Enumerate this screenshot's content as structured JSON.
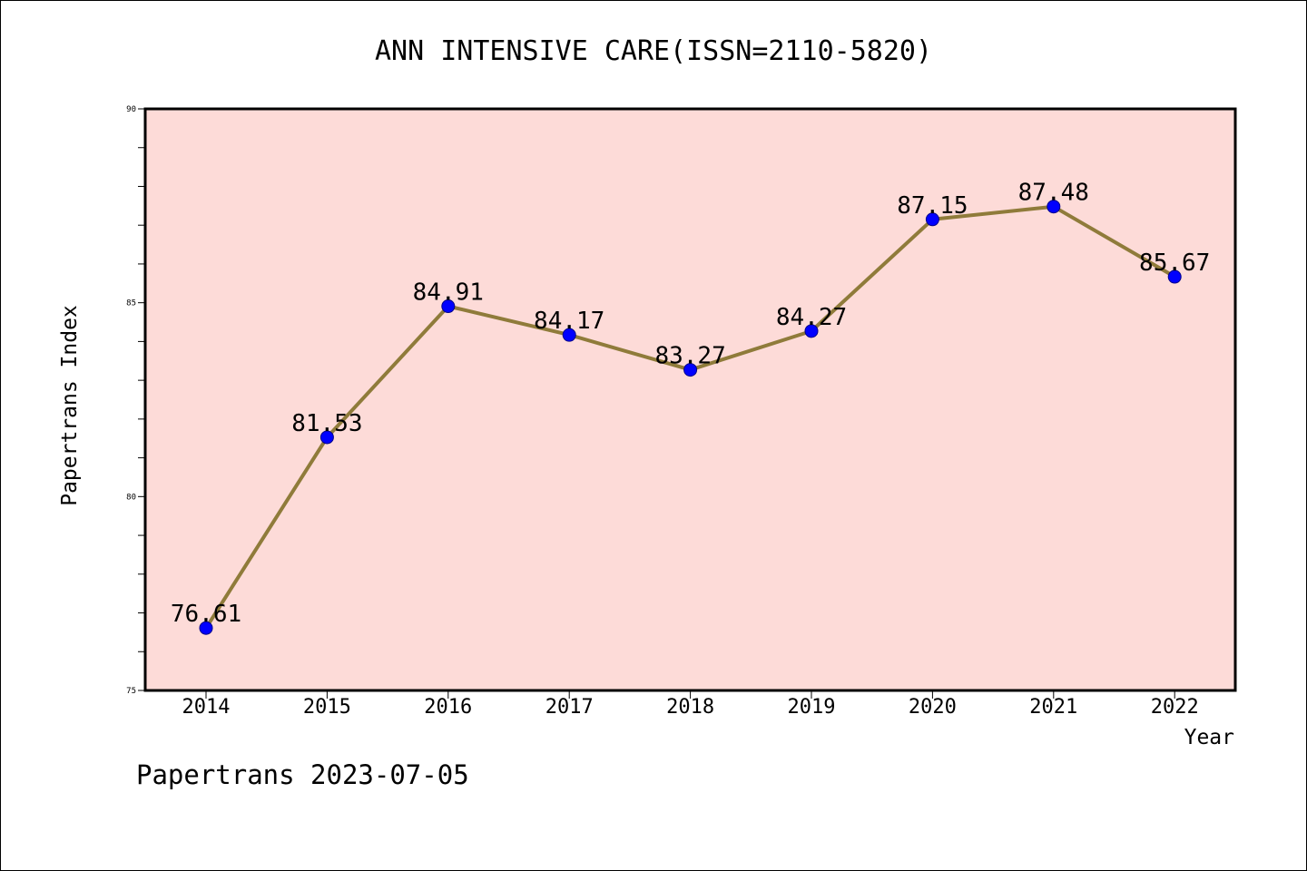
{
  "chart_data": {
    "type": "line",
    "title": "ANN INTENSIVE CARE(ISSN=2110-5820)",
    "xlabel": "Year",
    "ylabel": "Papertrans Index",
    "categories": [
      "2014",
      "2015",
      "2016",
      "2017",
      "2018",
      "2019",
      "2020",
      "2021",
      "2022"
    ],
    "series": [
      {
        "values": [
          76.61,
          81.53,
          84.91,
          84.17,
          83.27,
          84.27,
          87.15,
          87.48,
          85.67
        ],
        "labels": [
          "76.61",
          "81.53",
          "84.91",
          "84.17",
          "83.27",
          "84.27",
          "87.15",
          "87.48",
          "85.67"
        ]
      }
    ],
    "ylim": [
      75,
      90
    ],
    "yticks": [
      "75",
      "80",
      "85",
      "90"
    ],
    "ytick_values": [
      75,
      80,
      85,
      90
    ],
    "y_minor_step": 1,
    "grid": false,
    "colors": {
      "plot_background": "#fddbd8",
      "line": "#8f7b3a",
      "marker": "#0000ff"
    }
  },
  "footer": {
    "text": "Papertrans 2023-07-05"
  }
}
